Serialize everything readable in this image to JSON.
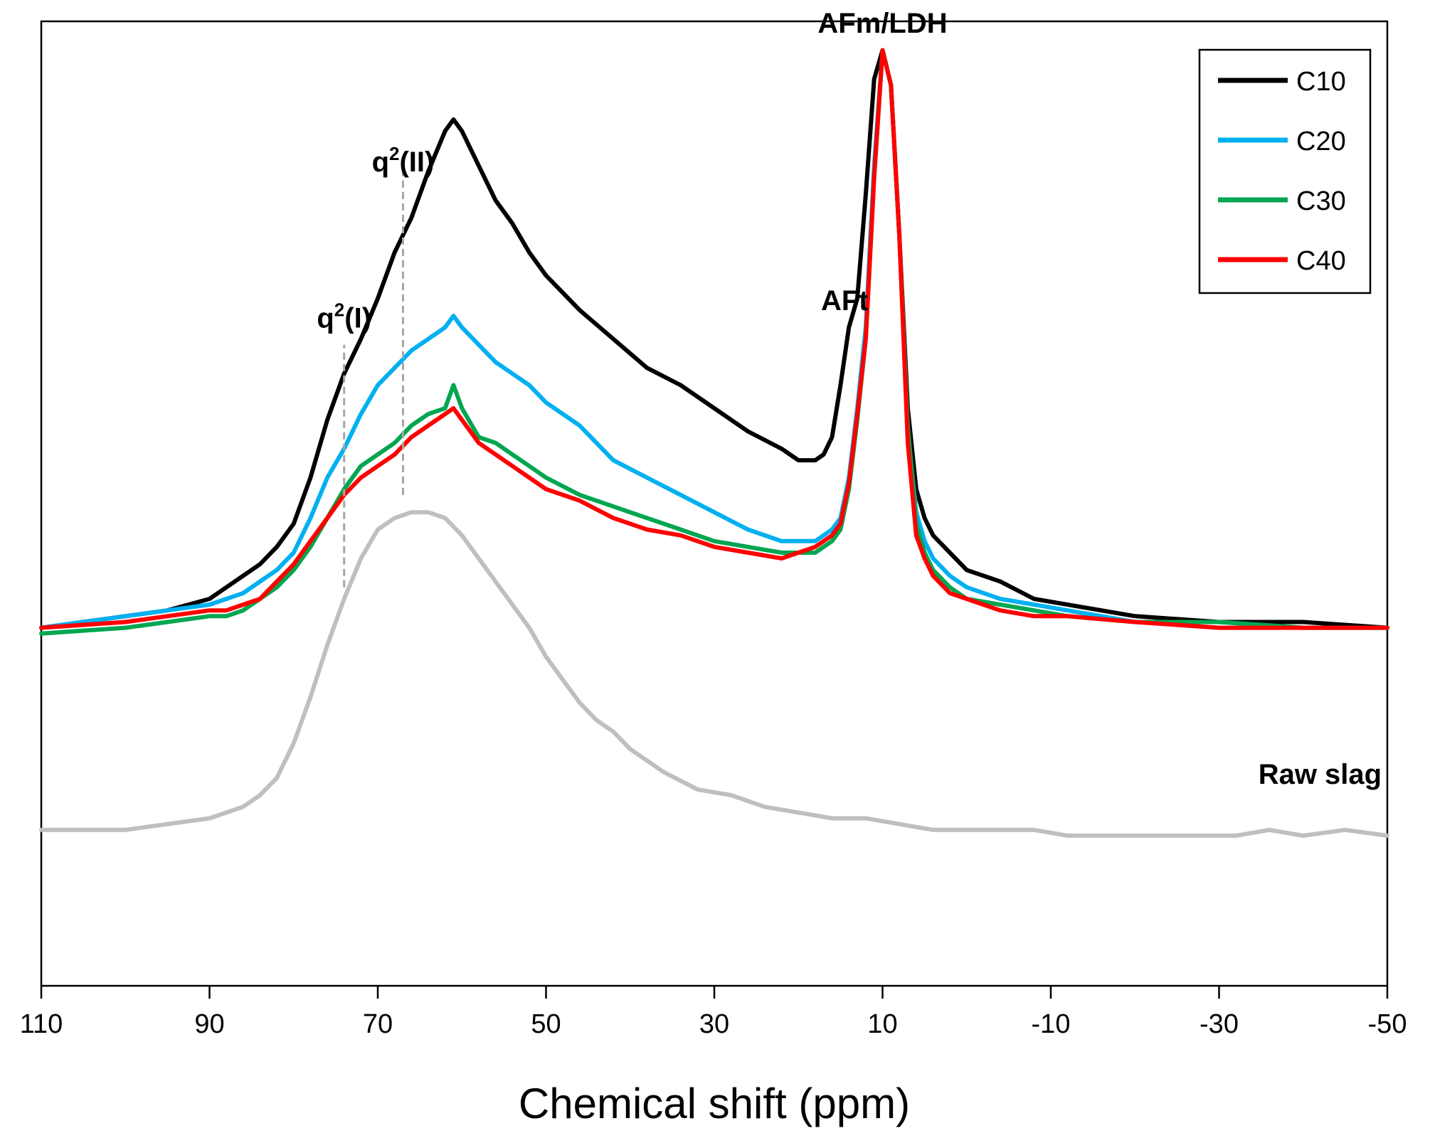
{
  "chart_data": {
    "type": "line",
    "xlabel": "Chemical shift (ppm)",
    "ylabel": "",
    "xlim": [
      110,
      -50
    ],
    "x_reversed": true,
    "xticks": [
      110,
      90,
      70,
      50,
      30,
      10,
      -10,
      -30,
      -50
    ],
    "xtick_labels": [
      "110",
      "90",
      "70",
      "50",
      "30",
      "10",
      "-10",
      "-30",
      "-50"
    ],
    "ylim": [
      -0.62,
      1.05
    ],
    "grid": false,
    "legend_position": "top-right",
    "series": [
      {
        "name": "C10",
        "color": "#000000",
        "x": [
          110,
          100,
          95,
          90,
          88,
          86,
          84,
          82,
          80,
          78,
          76,
          74,
          72,
          70,
          68,
          66,
          64,
          62,
          61,
          60,
          58,
          56,
          54,
          52,
          50,
          46,
          42,
          38,
          34,
          30,
          26,
          22,
          20,
          18,
          17,
          16,
          15,
          14,
          13,
          12,
          11,
          10,
          9,
          8,
          7,
          6,
          5,
          4,
          2,
          0,
          -4,
          -8,
          -12,
          -20,
          -30,
          -40,
          -50
        ],
        "y": [
          0.0,
          0.02,
          0.03,
          0.05,
          0.07,
          0.09,
          0.11,
          0.14,
          0.18,
          0.26,
          0.36,
          0.44,
          0.5,
          0.57,
          0.65,
          0.71,
          0.79,
          0.86,
          0.88,
          0.86,
          0.8,
          0.74,
          0.7,
          0.65,
          0.61,
          0.55,
          0.5,
          0.45,
          0.42,
          0.38,
          0.34,
          0.31,
          0.29,
          0.29,
          0.3,
          0.33,
          0.42,
          0.52,
          0.57,
          0.75,
          0.95,
          1.0,
          0.94,
          0.68,
          0.38,
          0.24,
          0.19,
          0.16,
          0.13,
          0.1,
          0.08,
          0.05,
          0.04,
          0.02,
          0.01,
          0.01,
          0.0
        ]
      },
      {
        "name": "C20",
        "color": "#00b0f0",
        "x": [
          110,
          100,
          95,
          90,
          88,
          86,
          84,
          82,
          80,
          78,
          76,
          74,
          72,
          70,
          68,
          66,
          64,
          62,
          61,
          60,
          58,
          56,
          54,
          52,
          50,
          46,
          42,
          38,
          34,
          30,
          26,
          22,
          20,
          18,
          16,
          15,
          14,
          13,
          12,
          11,
          10,
          9,
          8,
          7,
          6,
          5,
          4,
          2,
          0,
          -4,
          -8,
          -12,
          -20,
          -30,
          -40,
          -50
        ],
        "y": [
          0.0,
          0.02,
          0.03,
          0.04,
          0.05,
          0.06,
          0.08,
          0.1,
          0.13,
          0.19,
          0.26,
          0.31,
          0.37,
          0.42,
          0.45,
          0.48,
          0.5,
          0.52,
          0.54,
          0.52,
          0.49,
          0.46,
          0.44,
          0.42,
          0.39,
          0.35,
          0.29,
          0.26,
          0.23,
          0.2,
          0.17,
          0.15,
          0.15,
          0.15,
          0.17,
          0.19,
          0.26,
          0.38,
          0.52,
          0.8,
          1.0,
          0.94,
          0.68,
          0.34,
          0.2,
          0.15,
          0.12,
          0.09,
          0.07,
          0.05,
          0.04,
          0.03,
          0.01,
          0.01,
          0.0,
          0.0
        ]
      },
      {
        "name": "C30",
        "color": "#00a650",
        "x": [
          110,
          100,
          95,
          90,
          88,
          86,
          84,
          82,
          80,
          78,
          76,
          74,
          72,
          70,
          68,
          66,
          64,
          62,
          61,
          60,
          58,
          56,
          54,
          52,
          50,
          46,
          42,
          38,
          34,
          30,
          26,
          22,
          20,
          18,
          16,
          15,
          14,
          13,
          12,
          11,
          10,
          9,
          8,
          7,
          6,
          5,
          4,
          2,
          0,
          -4,
          -8,
          -12,
          -20,
          -30,
          -40,
          -50
        ],
        "y": [
          -0.01,
          0.0,
          0.01,
          0.02,
          0.02,
          0.03,
          0.05,
          0.07,
          0.1,
          0.14,
          0.19,
          0.24,
          0.28,
          0.3,
          0.32,
          0.35,
          0.37,
          0.38,
          0.42,
          0.38,
          0.33,
          0.32,
          0.3,
          0.28,
          0.26,
          0.23,
          0.21,
          0.19,
          0.17,
          0.15,
          0.14,
          0.13,
          0.13,
          0.13,
          0.15,
          0.17,
          0.24,
          0.36,
          0.5,
          0.78,
          1.0,
          0.94,
          0.68,
          0.35,
          0.18,
          0.13,
          0.1,
          0.07,
          0.05,
          0.04,
          0.03,
          0.02,
          0.01,
          0.01,
          0.0,
          0.0
        ]
      },
      {
        "name": "C40",
        "color": "#ff0000",
        "x": [
          110,
          100,
          95,
          90,
          88,
          86,
          84,
          82,
          80,
          78,
          76,
          74,
          72,
          70,
          68,
          66,
          64,
          62,
          61,
          60,
          58,
          56,
          54,
          52,
          50,
          46,
          42,
          38,
          34,
          30,
          26,
          22,
          20,
          18,
          16,
          15,
          14,
          13,
          12,
          11,
          10,
          9,
          8,
          7,
          6,
          5,
          4,
          2,
          0,
          -4,
          -8,
          -12,
          -20,
          -30,
          -40,
          -50
        ],
        "y": [
          0.0,
          0.01,
          0.02,
          0.03,
          0.03,
          0.04,
          0.05,
          0.08,
          0.11,
          0.15,
          0.19,
          0.23,
          0.26,
          0.28,
          0.3,
          0.33,
          0.35,
          0.37,
          0.38,
          0.36,
          0.32,
          0.3,
          0.28,
          0.26,
          0.24,
          0.22,
          0.19,
          0.17,
          0.16,
          0.14,
          0.13,
          0.12,
          0.13,
          0.14,
          0.16,
          0.18,
          0.25,
          0.37,
          0.5,
          0.78,
          1.0,
          0.94,
          0.68,
          0.32,
          0.16,
          0.12,
          0.09,
          0.06,
          0.05,
          0.03,
          0.02,
          0.02,
          0.01,
          0.0,
          0.0,
          0.0
        ]
      },
      {
        "name": "Raw slag",
        "color": "#bfbfbf",
        "x": [
          110,
          100,
          95,
          90,
          88,
          86,
          84,
          82,
          80,
          78,
          76,
          74,
          72,
          70,
          68,
          66,
          64,
          62,
          60,
          58,
          56,
          54,
          52,
          50,
          48,
          46,
          44,
          42,
          40,
          36,
          32,
          28,
          24,
          20,
          16,
          12,
          8,
          4,
          0,
          -4,
          -8,
          -12,
          -16,
          -20,
          -24,
          -28,
          -32,
          -36,
          -40,
          -45,
          -50
        ],
        "y": [
          -0.35,
          -0.35,
          -0.34,
          -0.33,
          -0.32,
          -0.31,
          -0.29,
          -0.26,
          -0.2,
          -0.12,
          -0.03,
          0.05,
          0.12,
          0.17,
          0.19,
          0.2,
          0.2,
          0.19,
          0.16,
          0.12,
          0.08,
          0.04,
          0.0,
          -0.05,
          -0.09,
          -0.13,
          -0.16,
          -0.18,
          -0.21,
          -0.25,
          -0.28,
          -0.29,
          -0.31,
          -0.32,
          -0.33,
          -0.33,
          -0.34,
          -0.35,
          -0.35,
          -0.35,
          -0.35,
          -0.36,
          -0.36,
          -0.36,
          -0.36,
          -0.36,
          -0.36,
          -0.35,
          -0.36,
          -0.35,
          -0.36
        ]
      }
    ],
    "annotations": [
      {
        "text_base": "q",
        "text_sup": "2",
        "text_rest": "(I)",
        "x": 74,
        "y": 0.52,
        "marker_y_from": 0.07,
        "marker_y_to": 0.49
      },
      {
        "text_base": "q",
        "text_sup": "2",
        "text_rest": "(II)",
        "x": 67,
        "y": 0.79,
        "marker_y_from": 0.23,
        "marker_y_to": 0.8
      },
      {
        "text": "AFt",
        "x": 14.5,
        "y": 0.55
      },
      {
        "text": "AFm/LDH",
        "x": 10,
        "y": 1.03
      },
      {
        "text": "Raw slag",
        "x": -42,
        "y": -0.27
      }
    ]
  }
}
